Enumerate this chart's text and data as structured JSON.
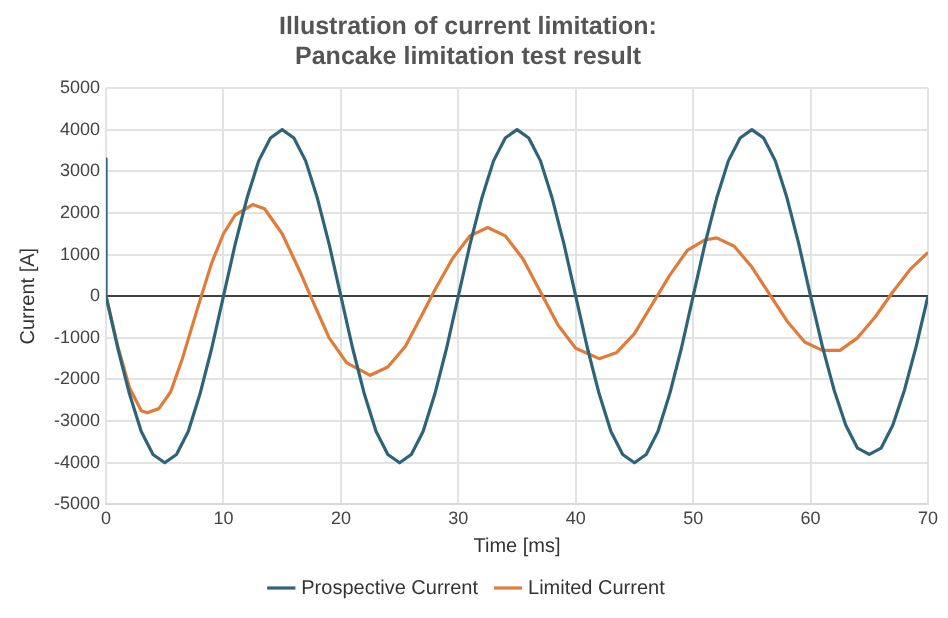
{
  "chart_data": {
    "type": "line",
    "title": "Illustration of current limitation:\nPancake limitation test result",
    "xlabel": "Time [ms]",
    "ylabel": "Current [A]",
    "xlim": [
      0,
      70
    ],
    "xticks": [
      0,
      10,
      20,
      30,
      40,
      50,
      60,
      70
    ],
    "ylim": [
      -5000,
      5000
    ],
    "yticks": [
      -5000,
      -4000,
      -3000,
      -2000,
      -1000,
      0,
      1000,
      2000,
      3000,
      4000,
      5000
    ],
    "grid": true,
    "legend": "bottom",
    "marker": "none",
    "line_style": "solid",
    "series": [
      {
        "name": "Prospective Current",
        "color": "#2f6478",
        "x": [
          0,
          0,
          1,
          2,
          3,
          4,
          5,
          6,
          7,
          8,
          9,
          10,
          11,
          12,
          13,
          14,
          15,
          16,
          17,
          18,
          19,
          20,
          21,
          22,
          23,
          24,
          25,
          26,
          27,
          28,
          29,
          30,
          31,
          32,
          33,
          34,
          35,
          36,
          37,
          38,
          39,
          40,
          41,
          42,
          43,
          44,
          45,
          46,
          47,
          48,
          49,
          50,
          51,
          52,
          53,
          54,
          55,
          56,
          57,
          58,
          59,
          60,
          61,
          62,
          63,
          64,
          65,
          66,
          67,
          68,
          69,
          70
        ],
        "values": [
          3300,
          0,
          -1250,
          -2350,
          -3250,
          -3800,
          -4000,
          -3800,
          -3250,
          -2350,
          -1250,
          0,
          1250,
          2350,
          3250,
          3800,
          4000,
          3800,
          3250,
          2350,
          1250,
          0,
          -1250,
          -2350,
          -3250,
          -3800,
          -4000,
          -3800,
          -3250,
          -2350,
          -1250,
          0,
          1250,
          2350,
          3250,
          3800,
          4000,
          3800,
          3250,
          2350,
          1250,
          0,
          -1250,
          -2350,
          -3250,
          -3800,
          -4000,
          -3800,
          -3250,
          -2350,
          -1250,
          0,
          1250,
          2350,
          3250,
          3800,
          4000,
          3800,
          3250,
          2350,
          1250,
          0,
          -1200,
          -2250,
          -3100,
          -3650,
          -3800,
          -3650,
          -3100,
          -2250,
          -1200,
          0
        ]
      },
      {
        "name": "Limited Current",
        "color": "#e07b39",
        "x": [
          0,
          1,
          2,
          3,
          3.5,
          4.5,
          5.5,
          6.5,
          8,
          9,
          10,
          11,
          12.5,
          13.5,
          15,
          16.5,
          17.5,
          19,
          20.5,
          22.5,
          24,
          25.5,
          27,
          28,
          29.5,
          31,
          32.5,
          34,
          35.5,
          37,
          38.5,
          40,
          42,
          43.5,
          45,
          46.5,
          48,
          49.5,
          51,
          52,
          53.5,
          55,
          56.5,
          58,
          59.5,
          61,
          62.5,
          64,
          65.5,
          67,
          68.5,
          70
        ],
        "values": [
          0,
          -1200,
          -2200,
          -2750,
          -2800,
          -2700,
          -2300,
          -1500,
          -100,
          800,
          1500,
          1950,
          2200,
          2100,
          1500,
          600,
          -50,
          -1000,
          -1600,
          -1900,
          -1700,
          -1200,
          -400,
          150,
          900,
          1450,
          1650,
          1450,
          900,
          100,
          -700,
          -1250,
          -1500,
          -1350,
          -900,
          -200,
          500,
          1100,
          1350,
          1400,
          1200,
          700,
          50,
          -600,
          -1100,
          -1300,
          -1300,
          -1000,
          -500,
          100,
          650,
          1050
        ]
      }
    ]
  }
}
